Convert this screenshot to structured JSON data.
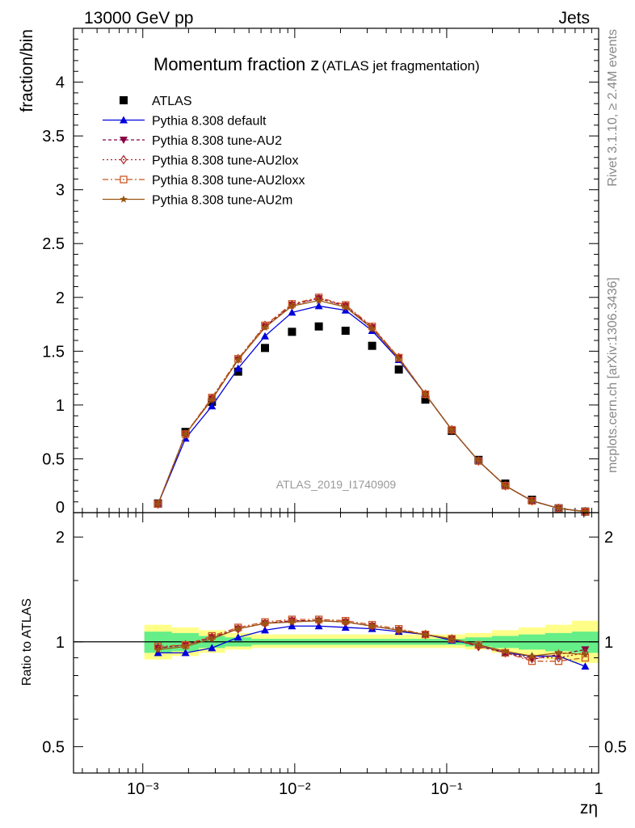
{
  "header": {
    "left": "13000 GeV pp",
    "right": "Jets"
  },
  "side_labels": {
    "rivet": "Rivet 3.1.10, ≥ 2.4M events",
    "mcplots": "mcplots.cern.ch [arXiv:1306.3436]"
  },
  "watermark": "ATLAS_2019_I1740909",
  "chart_data": [
    {
      "type": "scatter",
      "title": "Momentum fraction z",
      "subtitle": "(ATLAS jet fragmentation)",
      "ylabel": "fraction/bin",
      "xlabel": "zη",
      "xscale": "log",
      "xlim": [
        0.00035,
        1.0
      ],
      "ylim": [
        0,
        4.5
      ],
      "yticks": [
        0,
        0.5,
        1,
        1.5,
        2,
        2.5,
        3,
        3.5,
        4
      ],
      "ytick_labels": [
        "0",
        "0.5",
        "1",
        "1.5",
        "2",
        "2.5",
        "3",
        "3.5",
        "4"
      ],
      "xtick_labels": [
        "10⁻³",
        "10⁻²",
        "10⁻¹",
        "1"
      ],
      "x": [
        0.00126,
        0.00191,
        0.00285,
        0.00424,
        0.00637,
        0.00959,
        0.0144,
        0.0216,
        0.0323,
        0.0484,
        0.0724,
        0.108,
        0.162,
        0.243,
        0.364,
        0.545,
        0.816
      ],
      "series": [
        {
          "name": "ATLAS",
          "color": "#000000",
          "marker": "square",
          "values": [
            0.085,
            0.75,
            1.03,
            1.31,
            1.53,
            1.68,
            1.73,
            1.69,
            1.55,
            1.33,
            1.05,
            0.76,
            0.49,
            0.27,
            0.12,
            0.04,
            0.01
          ]
        },
        {
          "name": "Pythia 8.308 default",
          "color": "#0000dd",
          "marker": "triangle-up",
          "dash": "solid",
          "values": [
            0.08,
            0.69,
            0.99,
            1.34,
            1.64,
            1.86,
            1.92,
            1.88,
            1.69,
            1.42,
            1.1,
            0.77,
            0.48,
            0.25,
            0.11,
            0.04,
            0.01
          ]
        },
        {
          "name": "Pythia 8.308 tune-AU2",
          "color": "#880044",
          "marker": "triangle-down",
          "dash": "4,3",
          "values": [
            0.08,
            0.73,
            1.06,
            1.42,
            1.73,
            1.93,
            1.99,
            1.92,
            1.72,
            1.44,
            1.1,
            0.77,
            0.48,
            0.25,
            0.11,
            0.04,
            0.01
          ]
        },
        {
          "name": "Pythia 8.308 tune-AU2lox",
          "color": "#aa2222",
          "marker": "diamond",
          "dash": "2,3",
          "values": [
            0.08,
            0.73,
            1.06,
            1.43,
            1.74,
            1.93,
            1.99,
            1.92,
            1.72,
            1.44,
            1.1,
            0.77,
            0.48,
            0.25,
            0.11,
            0.04,
            0.01
          ]
        },
        {
          "name": "Pythia 8.308 tune-AU2loxx",
          "color": "#cc5522",
          "marker": "square-open",
          "dash": "7,3,2,3",
          "values": [
            0.08,
            0.73,
            1.07,
            1.43,
            1.74,
            1.94,
            2.0,
            1.93,
            1.73,
            1.44,
            1.1,
            0.77,
            0.48,
            0.25,
            0.11,
            0.04,
            0.01
          ]
        },
        {
          "name": "Pythia 8.308 tune-AU2m",
          "color": "#995511",
          "marker": "star",
          "dash": "solid",
          "values": [
            0.08,
            0.73,
            1.05,
            1.42,
            1.72,
            1.92,
            1.97,
            1.91,
            1.71,
            1.43,
            1.1,
            0.77,
            0.48,
            0.25,
            0.11,
            0.04,
            0.01
          ]
        }
      ]
    },
    {
      "type": "line",
      "ylabel": "Ratio to ATLAS",
      "yscale": "log",
      "ylim": [
        0.42,
        2.35
      ],
      "yticks": [
        0.5,
        1,
        2
      ],
      "ytick_labels": [
        "0.5",
        "1",
        "2"
      ],
      "band_inner": {
        "color": "#66ee88",
        "lo": [
          0.93,
          0.94,
          0.96,
          0.97,
          0.98,
          0.98,
          0.98,
          0.98,
          0.98,
          0.98,
          0.98,
          0.98,
          0.97,
          0.96,
          0.95,
          0.94,
          0.93
        ],
        "hi": [
          1.07,
          1.06,
          1.04,
          1.03,
          1.02,
          1.02,
          1.02,
          1.02,
          1.02,
          1.02,
          1.02,
          1.02,
          1.03,
          1.04,
          1.05,
          1.06,
          1.07
        ]
      },
      "band_outer": {
        "color": "#ffff88",
        "lo": [
          0.89,
          0.91,
          0.93,
          0.95,
          0.96,
          0.96,
          0.96,
          0.96,
          0.96,
          0.96,
          0.96,
          0.96,
          0.95,
          0.93,
          0.91,
          0.89,
          0.87
        ],
        "hi": [
          1.12,
          1.1,
          1.08,
          1.06,
          1.05,
          1.05,
          1.05,
          1.05,
          1.05,
          1.05,
          1.05,
          1.05,
          1.06,
          1.08,
          1.1,
          1.12,
          1.15
        ]
      },
      "series": [
        {
          "name": "Pythia 8.308 default",
          "values": [
            0.93,
            0.93,
            0.96,
            1.03,
            1.08,
            1.11,
            1.11,
            1.1,
            1.09,
            1.07,
            1.05,
            1.01,
            0.98,
            0.93,
            0.91,
            0.91,
            0.85
          ]
        },
        {
          "name": "Pythia 8.308 tune-AU2",
          "values": [
            0.96,
            0.98,
            1.03,
            1.09,
            1.13,
            1.15,
            1.15,
            1.14,
            1.11,
            1.08,
            1.05,
            1.02,
            0.97,
            0.93,
            0.89,
            0.92,
            0.95
          ]
        },
        {
          "name": "Pythia 8.308 tune-AU2lox",
          "values": [
            0.96,
            0.98,
            1.03,
            1.09,
            1.13,
            1.15,
            1.15,
            1.14,
            1.11,
            1.08,
            1.05,
            1.02,
            0.97,
            0.93,
            0.9,
            0.9,
            0.93
          ]
        },
        {
          "name": "Pythia 8.308 tune-AU2loxx",
          "values": [
            0.97,
            0.98,
            1.04,
            1.1,
            1.14,
            1.16,
            1.16,
            1.15,
            1.12,
            1.09,
            1.05,
            1.02,
            0.98,
            0.93,
            0.88,
            0.88,
            0.9
          ]
        },
        {
          "name": "Pythia 8.308 tune-AU2m",
          "values": [
            0.95,
            0.97,
            1.02,
            1.09,
            1.13,
            1.14,
            1.15,
            1.14,
            1.11,
            1.08,
            1.05,
            1.02,
            0.98,
            0.94,
            0.91,
            0.93,
            0.92
          ]
        }
      ]
    }
  ]
}
